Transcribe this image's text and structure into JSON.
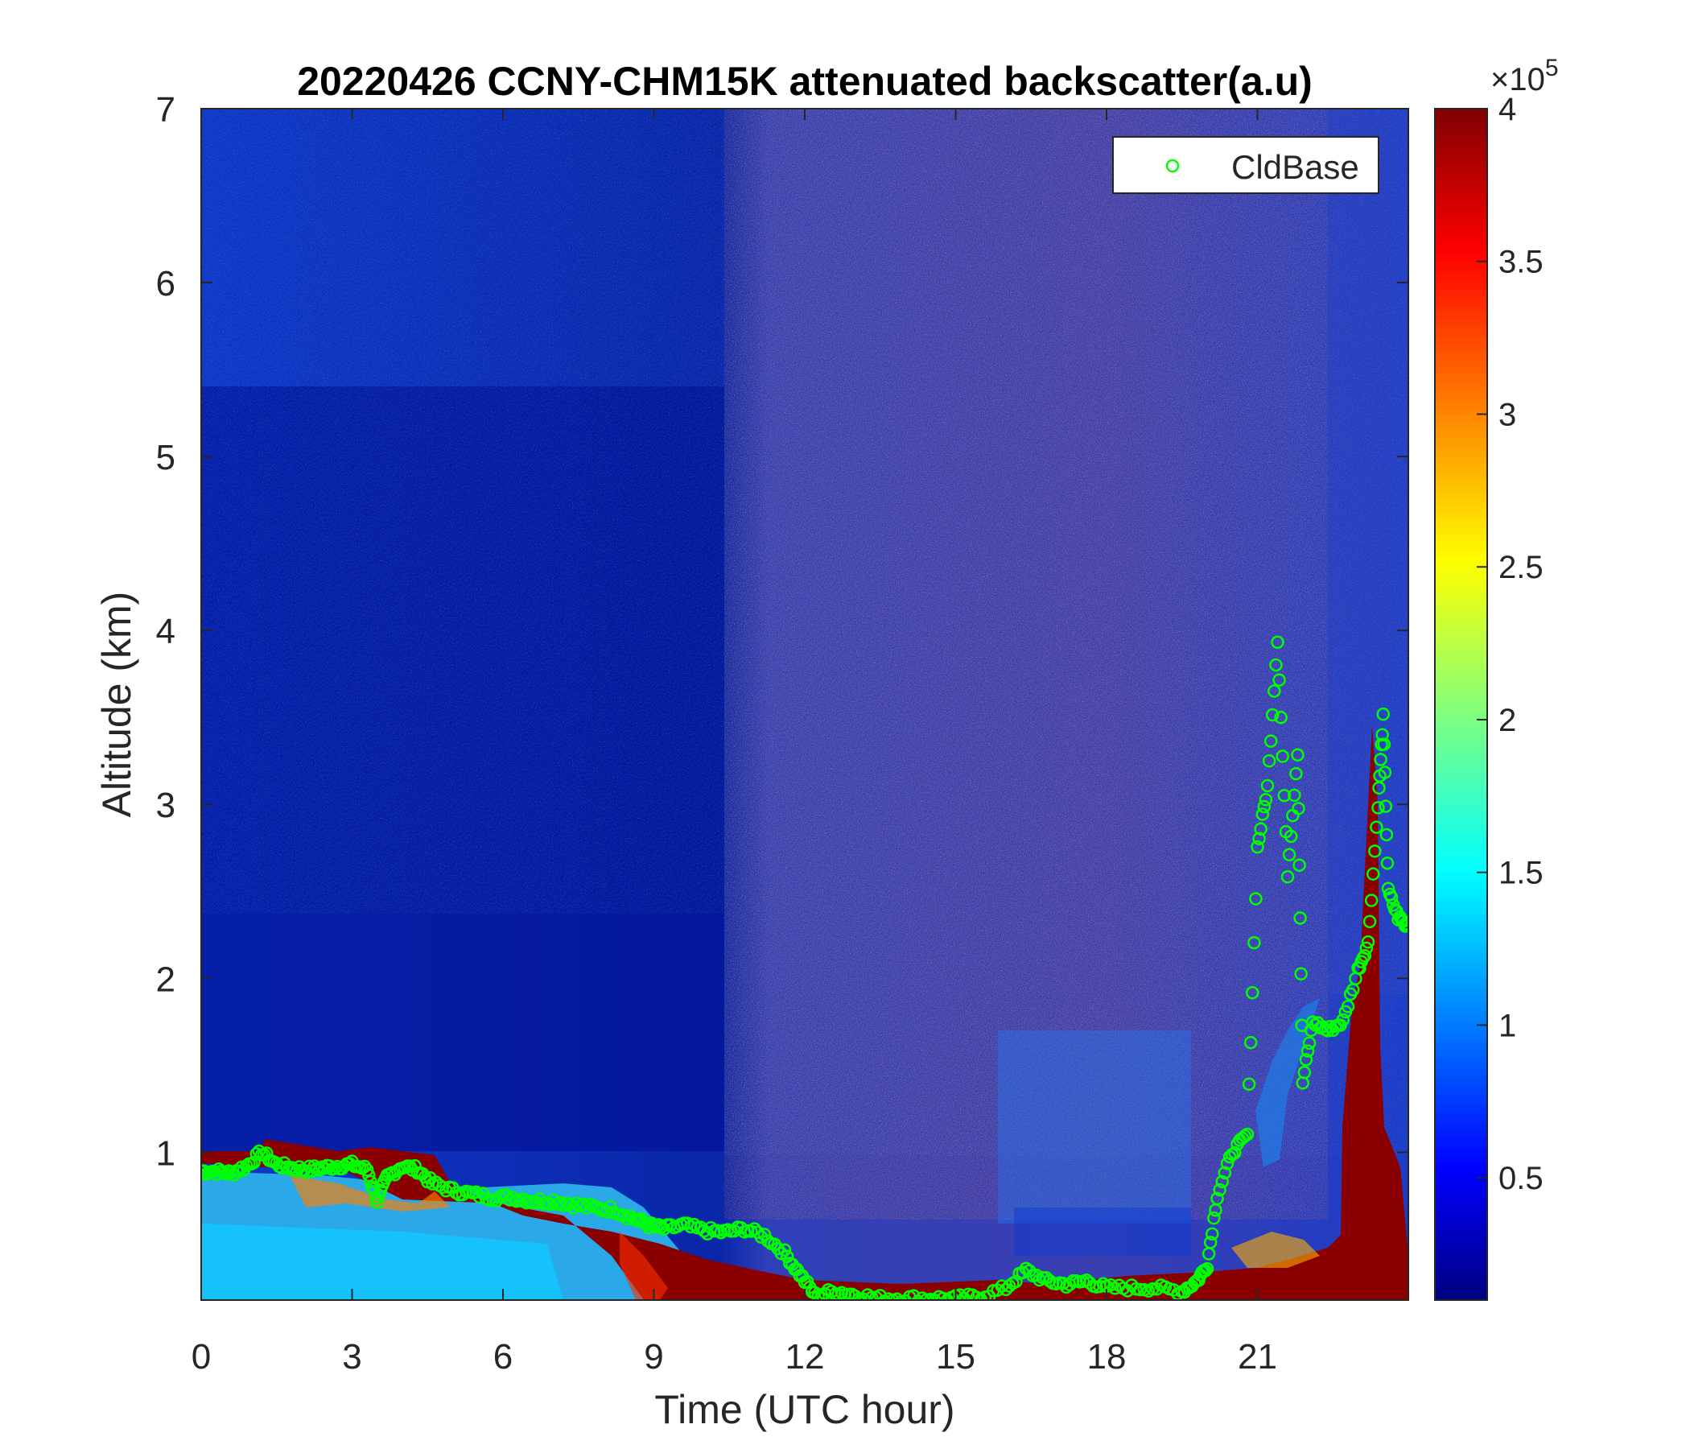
{
  "chart_data": {
    "type": "heatmap",
    "title": "20220426 CCNY-CHM15K attenuated backscatter(a.u)",
    "xlabel": "Time (UTC hour)",
    "ylabel": "Altitude (km)",
    "xlim": [
      0,
      24
    ],
    "ylim": [
      0.15,
      7
    ],
    "xticks": [
      0,
      3,
      6,
      9,
      12,
      15,
      18,
      21
    ],
    "yticks": [
      1,
      2,
      3,
      4,
      5,
      6,
      7
    ],
    "colorbar": {
      "colormap": "jet",
      "range": [
        0.1,
        4
      ],
      "ticks": [
        0.5,
        1,
        1.5,
        2,
        2.5,
        3,
        3.5,
        4
      ],
      "multiplier_label": "×10",
      "multiplier_exponent": "5"
    },
    "legend": {
      "position": "top-right",
      "entries": [
        {
          "name": "CldBase",
          "marker": "circle",
          "color": "#00ff00"
        }
      ]
    },
    "series": [
      {
        "name": "CldBase",
        "marker": "o",
        "color": "#00ff00",
        "points": [
          [
            0.0,
            0.89
          ],
          [
            0.3,
            0.89
          ],
          [
            0.6,
            0.88
          ],
          [
            0.9,
            0.92
          ],
          [
            1.2,
            1.0
          ],
          [
            1.5,
            0.93
          ],
          [
            1.8,
            0.91
          ],
          [
            2.1,
            0.9
          ],
          [
            2.4,
            0.91
          ],
          [
            2.7,
            0.92
          ],
          [
            3.0,
            0.93
          ],
          [
            3.3,
            0.9
          ],
          [
            3.5,
            0.72
          ],
          [
            3.7,
            0.86
          ],
          [
            4.0,
            0.92
          ],
          [
            4.3,
            0.9
          ],
          [
            4.6,
            0.82
          ],
          [
            5.0,
            0.78
          ],
          [
            5.4,
            0.76
          ],
          [
            5.8,
            0.74
          ],
          [
            6.2,
            0.74
          ],
          [
            6.6,
            0.72
          ],
          [
            7.0,
            0.72
          ],
          [
            7.4,
            0.7
          ],
          [
            7.8,
            0.68
          ],
          [
            8.2,
            0.67
          ],
          [
            8.6,
            0.62
          ],
          [
            8.9,
            0.58
          ],
          [
            9.2,
            0.56
          ],
          [
            9.6,
            0.58
          ],
          [
            10.0,
            0.55
          ],
          [
            10.4,
            0.54
          ],
          [
            10.8,
            0.56
          ],
          [
            11.2,
            0.52
          ],
          [
            11.6,
            0.42
          ],
          [
            11.9,
            0.3
          ],
          [
            12.2,
            0.18
          ],
          [
            12.6,
            0.2
          ],
          [
            13.0,
            0.18
          ],
          [
            13.5,
            0.16
          ],
          [
            14.0,
            0.16
          ],
          [
            14.5,
            0.16
          ],
          [
            15.0,
            0.16
          ],
          [
            15.5,
            0.17
          ],
          [
            16.0,
            0.22
          ],
          [
            16.4,
            0.32
          ],
          [
            16.8,
            0.26
          ],
          [
            17.2,
            0.24
          ],
          [
            17.6,
            0.26
          ],
          [
            18.0,
            0.22
          ],
          [
            18.5,
            0.22
          ],
          [
            19.0,
            0.22
          ],
          [
            19.5,
            0.2
          ],
          [
            19.8,
            0.26
          ],
          [
            20.0,
            0.35
          ],
          [
            20.2,
            0.75
          ],
          [
            20.5,
            1.0
          ],
          [
            20.8,
            1.1
          ],
          [
            21.0,
            2.75
          ],
          [
            21.2,
            3.1
          ],
          [
            21.4,
            3.95
          ],
          [
            21.6,
            2.6
          ],
          [
            21.8,
            3.3
          ],
          [
            21.9,
            1.4
          ],
          [
            22.1,
            1.75
          ],
          [
            22.4,
            1.7
          ],
          [
            22.7,
            1.75
          ],
          [
            23.0,
            2.05
          ],
          [
            23.2,
            2.2
          ],
          [
            23.4,
            3.0
          ],
          [
            23.5,
            3.5
          ],
          [
            23.6,
            2.5
          ],
          [
            23.8,
            2.35
          ],
          [
            24.0,
            2.3
          ]
        ]
      }
    ]
  }
}
